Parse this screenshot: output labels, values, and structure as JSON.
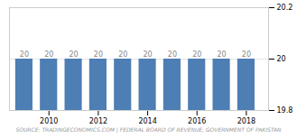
{
  "chart_data": {
    "type": "bar",
    "x": [
      2009,
      2010,
      2011,
      2012,
      2013,
      2014,
      2015,
      2016,
      2017,
      2018
    ],
    "values": [
      20,
      20,
      20,
      20,
      20,
      20,
      20,
      20,
      20,
      20
    ],
    "color": "#4d7eb4",
    "xlim": [
      2008.4,
      2018.9
    ],
    "xticks": [
      2010,
      2012,
      2014,
      2016,
      2018
    ],
    "ylim": [
      19.8,
      20.2
    ],
    "yticks": [
      19.8,
      20,
      20.2
    ],
    "grid": true,
    "data_labels": true,
    "caption": "SOURCE: TRADINGECONOMICS.COM | FEDERAL BOARD OF REVENUE, GOVERNMENT OF PAKISTAN"
  }
}
